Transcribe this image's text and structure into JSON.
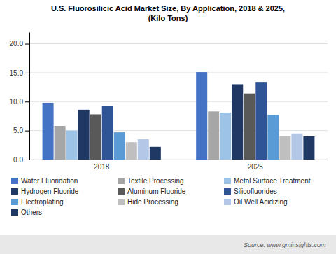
{
  "chart_data": {
    "type": "bar",
    "title": "U.S. Fluorosilicic Acid Market Size, By Application, 2018 & 2025,",
    "subtitle": "(Kilo Tons)",
    "categories": [
      "2018",
      "2025"
    ],
    "series": [
      {
        "name": "Water Fluoridation",
        "color": "#4472c4",
        "values": [
          9.8,
          15.1
        ]
      },
      {
        "name": "Textile Processing",
        "color": "#a6a6a6",
        "values": [
          5.8,
          8.3
        ]
      },
      {
        "name": "Metal Surface Treatment",
        "color": "#9dc3e6",
        "values": [
          5.0,
          8.1
        ]
      },
      {
        "name": "Hydrogen Fluoride",
        "color": "#1f3864",
        "values": [
          8.6,
          13.0
        ]
      },
      {
        "name": "Aluminum Fluoride",
        "color": "#595959",
        "values": [
          7.8,
          11.4
        ]
      },
      {
        "name": "Silicofluorides",
        "color": "#2f5597",
        "values": [
          9.2,
          13.4
        ]
      },
      {
        "name": "Electroplating",
        "color": "#5b9bd5",
        "values": [
          4.7,
          7.7
        ]
      },
      {
        "name": "Hide Processing",
        "color": "#bfbfbf",
        "values": [
          3.0,
          4.0
        ]
      },
      {
        "name": "Oil Well Acidizing",
        "color": "#b4c7e7",
        "values": [
          3.5,
          4.5
        ]
      },
      {
        "name": "Others",
        "color": "#203864",
        "values": [
          2.2,
          4.0
        ]
      }
    ],
    "ylim": [
      0,
      22
    ],
    "yticks": [
      {
        "value": 0,
        "label": "0.0"
      },
      {
        "value": 5,
        "label": "5.0"
      },
      {
        "value": 10,
        "label": "10.0"
      },
      {
        "value": 15,
        "label": "15.0"
      },
      {
        "value": 20,
        "label": "20.0"
      }
    ],
    "grid": true,
    "legend": "bottom",
    "annotation": "Source: www.gminsights.com"
  }
}
